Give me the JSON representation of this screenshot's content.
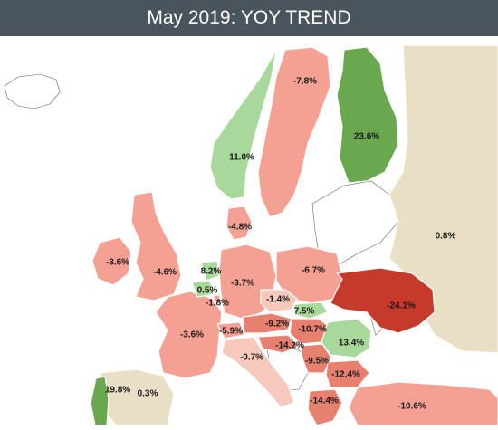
{
  "title": "May 2019: YOY TREND",
  "colors": {
    "header_bg": "#4a545c",
    "strong_green": "#6aa84f",
    "light_green": "#a8d89a",
    "light_red": "#f4a093",
    "mid_red": "#e8806f",
    "strong_red": "#c63a2c",
    "faint_red": "#f7c9bd",
    "tan": "#e8dfc4",
    "no_data": "#ffffff"
  },
  "regions": [
    {
      "name": "Finland",
      "value": "23.6%",
      "color_key": "strong_green"
    },
    {
      "name": "Sweden",
      "value": "-7.8%",
      "color_key": "light_red"
    },
    {
      "name": "Norway",
      "value": "11.0%",
      "color_key": "light_green"
    },
    {
      "name": "Russia",
      "value": "0.8%",
      "color_key": "tan"
    },
    {
      "name": "Denmark",
      "value": "-4.8%",
      "color_key": "light_red"
    },
    {
      "name": "Ireland",
      "value": "-3.6%",
      "color_key": "light_red"
    },
    {
      "name": "United Kingdom",
      "value": "-4.6%",
      "color_key": "light_red"
    },
    {
      "name": "Netherlands",
      "value": "8.2%",
      "color_key": "light_green"
    },
    {
      "name": "Belgium",
      "value": "0.5%",
      "color_key": "light_green"
    },
    {
      "name": "Luxembourg",
      "value": "-1.8%",
      "color_key": "light_red"
    },
    {
      "name": "Germany",
      "value": "-3.7%",
      "color_key": "light_red"
    },
    {
      "name": "Poland",
      "value": "-6.7%",
      "color_key": "light_red"
    },
    {
      "name": "Czech Republic",
      "value": "-1.4%",
      "color_key": "faint_red"
    },
    {
      "name": "Slovakia",
      "value": "7.5%",
      "color_key": "light_green"
    },
    {
      "name": "Ukraine",
      "value": "-24.1%",
      "color_key": "strong_red"
    },
    {
      "name": "France",
      "value": "-3.6%",
      "color_key": "light_red"
    },
    {
      "name": "Switzerland",
      "value": "-5.9%",
      "color_key": "light_red"
    },
    {
      "name": "Austria",
      "value": "-9.2%",
      "color_key": "mid_red"
    },
    {
      "name": "Hungary",
      "value": "-10.7%",
      "color_key": "mid_red"
    },
    {
      "name": "Romania",
      "value": "13.4%",
      "color_key": "light_green"
    },
    {
      "name": "Slovenia",
      "value": "-14.2%",
      "color_key": "mid_red"
    },
    {
      "name": "Italy",
      "value": "-0.7%",
      "color_key": "faint_red"
    },
    {
      "name": "Serbia",
      "value": "-9.5%",
      "color_key": "mid_red"
    },
    {
      "name": "Bulgaria",
      "value": "-12.4%",
      "color_key": "mid_red"
    },
    {
      "name": "Portugal",
      "value": "19.8%",
      "color_key": "strong_green"
    },
    {
      "name": "Spain",
      "value": "0.3%",
      "color_key": "tan"
    },
    {
      "name": "Greece",
      "value": "-14.4%",
      "color_key": "mid_red"
    },
    {
      "name": "Turkey",
      "value": "-10.6%",
      "color_key": "light_red"
    }
  ]
}
